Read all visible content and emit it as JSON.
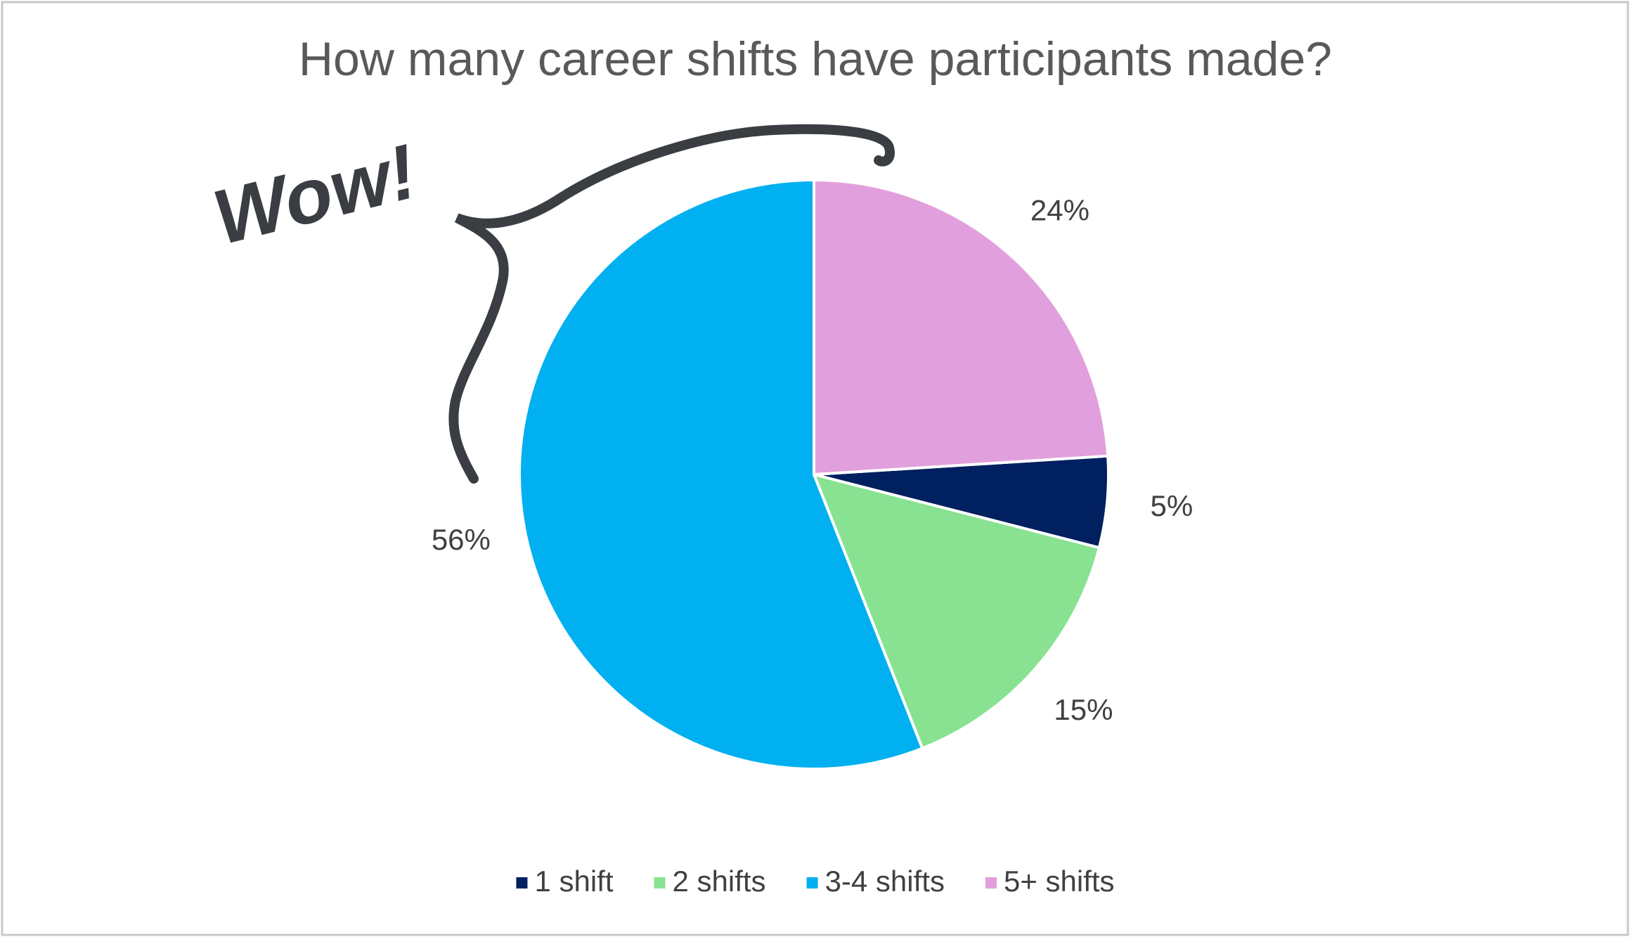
{
  "chart_data": {
    "type": "pie",
    "title": "How many career shifts have participants made?",
    "annotation": "Wow!",
    "categories": [
      "1 shift",
      "2 shifts",
      "3-4 shifts",
      "5+ shifts"
    ],
    "values": [
      5,
      15,
      56,
      24
    ],
    "value_labels": [
      "5%",
      "15%",
      "56%",
      "24%"
    ],
    "colors": [
      "#002060",
      "#88e291",
      "#00b0f0",
      "#e29fdd"
    ],
    "legend": "bottom"
  }
}
